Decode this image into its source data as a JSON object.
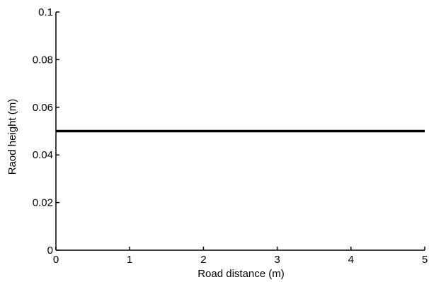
{
  "chart_data": {
    "type": "line",
    "title": "",
    "xlabel": "Road distance (m)",
    "ylabel": "Raod  height (m)",
    "xlim": [
      0,
      5
    ],
    "ylim": [
      0,
      0.1
    ],
    "grid": false,
    "x_ticks": [
      0,
      1,
      2,
      3,
      4,
      5
    ],
    "x_tick_labels": [
      "0",
      "1",
      "2",
      "3",
      "4",
      "5"
    ],
    "y_ticks": [
      0,
      0.02,
      0.04,
      0.06,
      0.08,
      0.1
    ],
    "y_tick_labels": [
      "0",
      "0.02",
      "0.04",
      "0.06",
      "0.08",
      "0.1"
    ],
    "series": [
      {
        "x": [
          0,
          5
        ],
        "y": [
          0.05,
          0.05
        ],
        "color": "#000000"
      }
    ]
  }
}
